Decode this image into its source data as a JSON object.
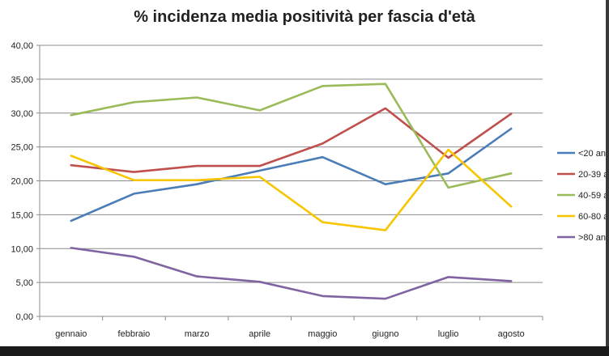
{
  "chart_data": {
    "type": "line",
    "title": "% incidenza media positività per fascia d'età",
    "categories": [
      "gennaio",
      "febbraio",
      "marzo",
      "aprile",
      "maggio",
      "giugno",
      "luglio",
      "agosto"
    ],
    "y_ticks": [
      "0,00",
      "5,00",
      "10,00",
      "15,00",
      "20,00",
      "25,00",
      "30,00",
      "35,00",
      "40,00"
    ],
    "ylim": [
      0,
      40
    ],
    "grid": true,
    "legend_position": "right",
    "series": [
      {
        "name": "<20 an",
        "color": "#4a7db8",
        "values": [
          14.1,
          18.1,
          19.5,
          21.5,
          23.5,
          19.5,
          21.1,
          27.7
        ]
      },
      {
        "name": "20-39 a",
        "color": "#c0504d",
        "values": [
          22.3,
          21.3,
          22.2,
          22.2,
          25.5,
          30.7,
          23.4,
          29.9
        ]
      },
      {
        "name": "40-59 a",
        "color": "#9bbb59",
        "values": [
          29.7,
          31.6,
          32.3,
          30.4,
          34.0,
          34.3,
          19.0,
          21.1
        ]
      },
      {
        "name": "60-80 a",
        "color": "#f7c600",
        "values": [
          23.7,
          20.1,
          20.1,
          20.6,
          13.9,
          12.7,
          24.6,
          16.2
        ]
      },
      {
        "name": ">80 an",
        "color": "#8064a2",
        "values": [
          10.1,
          8.8,
          5.9,
          5.1,
          3.0,
          2.6,
          5.8,
          5.2
        ]
      }
    ]
  }
}
